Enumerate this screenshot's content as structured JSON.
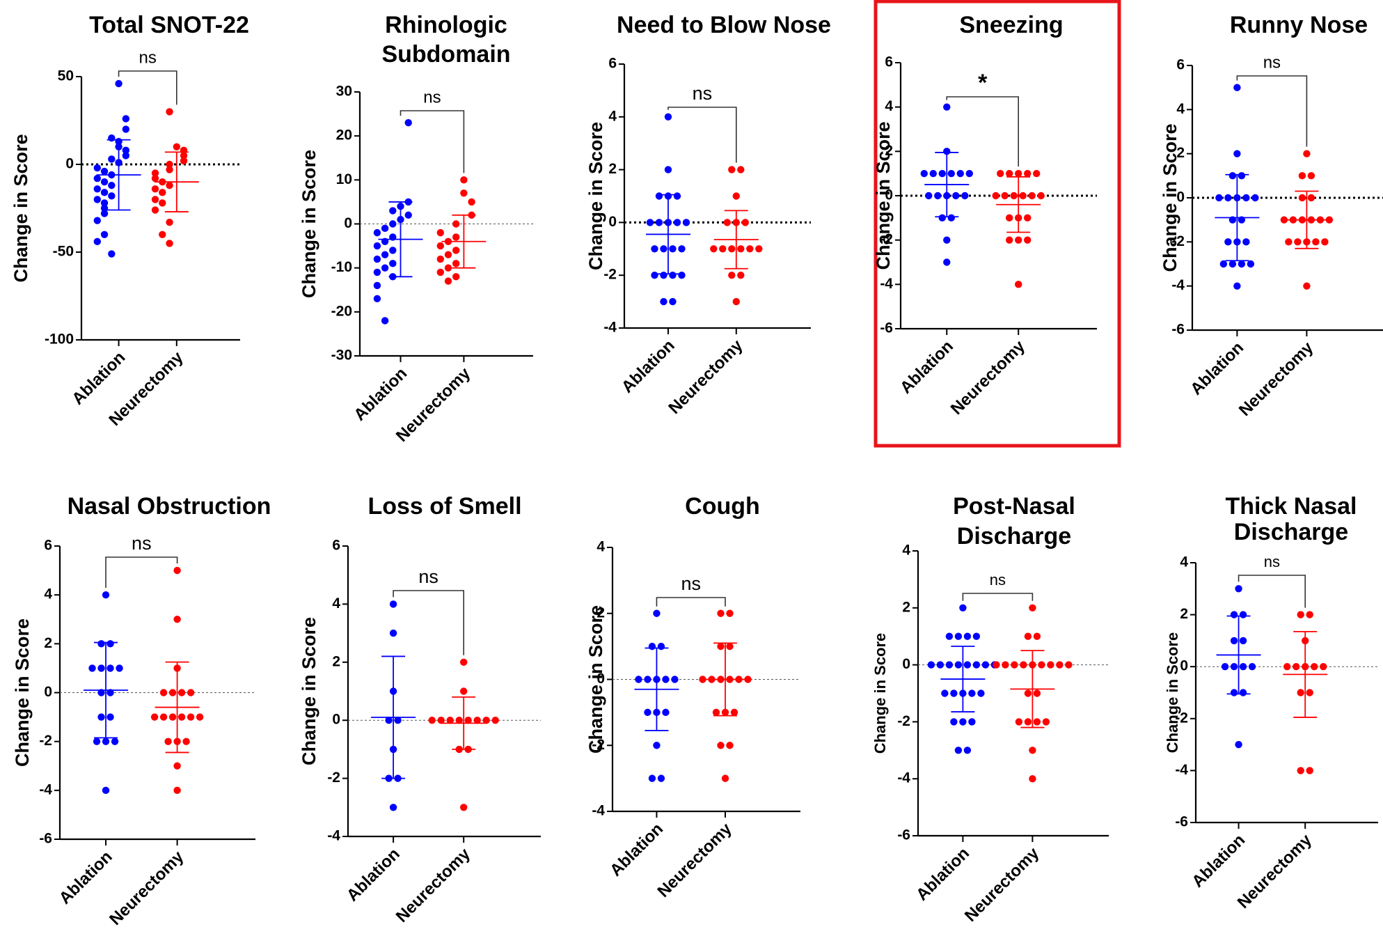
{
  "colors": {
    "ablation": "#0000ff",
    "neurectomy": "#ff0000",
    "highlight": "#e8141b",
    "axis": "#000000"
  },
  "chart_data": [
    {
      "type": "scatter",
      "title": [
        "Total SNOT-22"
      ],
      "ylabel": "Change in Score",
      "ylim": [
        -100,
        50
      ],
      "yticks": [
        50,
        0,
        -50,
        -100
      ],
      "reference_line": "bold-dotted",
      "categories": [
        "Ablation",
        "Neurectomy"
      ],
      "significance": "ns",
      "highlighted": false,
      "series": [
        {
          "name": "Ablation",
          "values": [
            46,
            26,
            20,
            15,
            13,
            10,
            8,
            5,
            3,
            1,
            -2,
            -4,
            -6,
            -8,
            -10,
            -12,
            -14,
            -16,
            -18,
            -20,
            -22,
            -25,
            -28,
            -32,
            -40,
            -44,
            -51
          ],
          "mean": -6,
          "sd": 20
        },
        {
          "name": "Neurectomy",
          "values": [
            30,
            10,
            8,
            5,
            2,
            0,
            -3,
            -5,
            -8,
            -10,
            -12,
            -14,
            -16,
            -20,
            -22,
            -26,
            -33,
            -40,
            -45
          ],
          "mean": -10,
          "sd": 17
        }
      ]
    },
    {
      "type": "scatter",
      "title": [
        "Rhinologic",
        "Subdomain"
      ],
      "ylabel": "Change in Score",
      "ylim": [
        -30,
        30
      ],
      "yticks": [
        30,
        20,
        10,
        0,
        -10,
        -20,
        -30
      ],
      "reference_line": "thin-dotted",
      "categories": [
        "Ablation",
        "Neurectomy"
      ],
      "significance": "ns",
      "highlighted": false,
      "series": [
        {
          "name": "Ablation",
          "values": [
            23,
            5,
            4,
            3,
            2,
            1,
            0,
            -1,
            -2,
            -3,
            -4,
            -5,
            -6,
            -7,
            -8,
            -9,
            -10,
            -11,
            -12,
            -14,
            -17,
            -22
          ],
          "mean": -3.5,
          "sd": 8.5
        },
        {
          "name": "Neurectomy",
          "values": [
            10,
            7,
            5,
            2,
            0,
            -2,
            -3,
            -4,
            -5,
            -6,
            -7,
            -8,
            -9,
            -10,
            -11,
            -12,
            -13
          ],
          "mean": -4,
          "sd": 6
        }
      ]
    },
    {
      "type": "scatter",
      "title": [
        "Need to Blow Nose"
      ],
      "ylabel": "Change in Score",
      "ylim": [
        -4,
        6
      ],
      "yticks": [
        6,
        4,
        2,
        0,
        -2,
        -4
      ],
      "reference_line": "bold-dotted",
      "categories": [
        "Ablation",
        "Neurectomy"
      ],
      "significance": "ns",
      "highlighted": false,
      "series": [
        {
          "name": "Ablation",
          "values": [
            4,
            2,
            1,
            1,
            1,
            0,
            0,
            0,
            0,
            0,
            -1,
            -1,
            -1,
            -1,
            -2,
            -2,
            -2,
            -2,
            -3,
            -3
          ],
          "mean": -0.45,
          "sd": 1.5
        },
        {
          "name": "Neurectomy",
          "values": [
            2,
            2,
            1,
            0,
            0,
            0,
            -1,
            -1,
            -1,
            -1,
            -1,
            -1,
            -2,
            -2,
            -3
          ],
          "mean": -0.65,
          "sd": 1.1
        }
      ]
    },
    {
      "type": "scatter",
      "title": [
        "Sneezing"
      ],
      "ylabel": "Change in Score",
      "ylim": [
        -6,
        6
      ],
      "yticks": [
        6,
        4,
        2,
        0,
        -2,
        -4,
        -6
      ],
      "reference_line": "bold-dotted",
      "categories": [
        "Ablation",
        "Neurectomy"
      ],
      "significance": "*",
      "highlighted": true,
      "series": [
        {
          "name": "Ablation",
          "values": [
            4,
            2,
            1,
            1,
            1,
            1,
            1,
            1,
            0,
            0,
            0,
            0,
            0,
            -1,
            -1,
            -2,
            -3
          ],
          "mean": 0.5,
          "sd": 1.45
        },
        {
          "name": "Neurectomy",
          "values": [
            1,
            1,
            1,
            1,
            1,
            0,
            0,
            0,
            0,
            0,
            0,
            -1,
            -1,
            -1,
            -2,
            -2,
            -2,
            -4
          ],
          "mean": -0.4,
          "sd": 1.25
        }
      ]
    },
    {
      "type": "scatter",
      "title": [
        "Runny Nose"
      ],
      "ylabel": "Change in Score",
      "ylim": [
        -6,
        6
      ],
      "yticks": [
        6,
        4,
        2,
        0,
        -2,
        -4,
        -6
      ],
      "reference_line": "bold-dotted",
      "categories": [
        "Ablation",
        "Neurectomy"
      ],
      "significance": "ns",
      "highlighted": false,
      "series": [
        {
          "name": "Ablation",
          "values": [
            5,
            2,
            1,
            1,
            0,
            0,
            0,
            0,
            0,
            -1,
            -1,
            -2,
            -2,
            -2,
            -3,
            -3,
            -3,
            -3,
            -4
          ],
          "mean": -0.9,
          "sd": 1.95
        },
        {
          "name": "Neurectomy",
          "values": [
            2,
            1,
            1,
            0,
            0,
            -1,
            -1,
            -1,
            -1,
            -1,
            -1,
            -2,
            -2,
            -2,
            -2,
            -2,
            -4
          ],
          "mean": -1,
          "sd": 1.3
        }
      ]
    },
    {
      "type": "scatter",
      "title": [
        "Nasal Obstruction"
      ],
      "ylabel": "Change in Score",
      "ylim": [
        -6,
        6
      ],
      "yticks": [
        6,
        4,
        2,
        0,
        -2,
        -4,
        -6
      ],
      "reference_line": "thin-dotted",
      "categories": [
        "Ablation",
        "Neurectomy"
      ],
      "significance": "ns",
      "highlighted": false,
      "series": [
        {
          "name": "Ablation",
          "values": [
            4,
            2,
            2,
            1,
            1,
            1,
            1,
            0,
            0,
            -1,
            -1,
            -2,
            -2,
            -2,
            -4
          ],
          "mean": 0.1,
          "sd": 1.95
        },
        {
          "name": "Neurectomy",
          "values": [
            5,
            3,
            1,
            0,
            0,
            0,
            0,
            -1,
            -1,
            -1,
            -1,
            -1,
            -1,
            -2,
            -2,
            -2,
            -3,
            -4
          ],
          "mean": -0.6,
          "sd": 1.85
        }
      ]
    },
    {
      "type": "scatter",
      "title": [
        "Loss of Smell"
      ],
      "ylabel": "Change in Score",
      "ylim": [
        -4,
        6
      ],
      "yticks": [
        6,
        4,
        2,
        0,
        -2,
        -4
      ],
      "reference_line": "thin-dotted",
      "categories": [
        "Ablation",
        "Neurectomy"
      ],
      "significance": "ns",
      "highlighted": false,
      "series": [
        {
          "name": "Ablation",
          "values": [
            4,
            3,
            1,
            0,
            0,
            -1,
            -2,
            -2,
            -3
          ],
          "mean": 0.1,
          "sd": 2.1
        },
        {
          "name": "Neurectomy",
          "values": [
            2,
            1,
            0,
            0,
            0,
            0,
            0,
            0,
            0,
            0,
            -1,
            -1,
            -3
          ],
          "mean": -0.1,
          "sd": 0.9
        }
      ]
    },
    {
      "type": "scatter",
      "title": [
        "Cough"
      ],
      "ylabel": "Change in Score",
      "ylim": [
        -4,
        4
      ],
      "yticks": [
        4,
        2,
        0,
        -2,
        -4
      ],
      "reference_line": "thin-dotted",
      "categories": [
        "Ablation",
        "Neurectomy"
      ],
      "significance": "ns",
      "highlighted": false,
      "series": [
        {
          "name": "Ablation",
          "values": [
            2,
            1,
            1,
            0,
            0,
            0,
            0,
            0,
            -1,
            -1,
            -1,
            -2,
            -3,
            -3
          ],
          "mean": -0.3,
          "sd": 1.25
        },
        {
          "name": "Neurectomy",
          "values": [
            2,
            2,
            1,
            1,
            0,
            0,
            0,
            0,
            0,
            0,
            -1,
            -1,
            -1,
            -2,
            -2,
            -3
          ],
          "mean": 0,
          "sd": 1.1
        }
      ]
    },
    {
      "type": "scatter",
      "title": [
        "Post-Nasal",
        "Discharge"
      ],
      "ylabel": "Change in Score",
      "ylim": [
        -6,
        4
      ],
      "yticks": [
        4,
        2,
        0,
        -2,
        -4,
        -6
      ],
      "reference_line": "thin-dotted",
      "categories": [
        "Ablation",
        "Neurectomy"
      ],
      "significance": "ns",
      "highlighted": false,
      "series": [
        {
          "name": "Ablation",
          "values": [
            2,
            1,
            1,
            1,
            1,
            0,
            0,
            0,
            0,
            0,
            0,
            0,
            0,
            -1,
            -1,
            -1,
            -1,
            -1,
            -2,
            -2,
            -2,
            -3,
            -3
          ],
          "mean": -0.5,
          "sd": 1.15
        },
        {
          "name": "Neurectomy",
          "values": [
            2,
            1,
            1,
            0,
            0,
            0,
            0,
            0,
            0,
            0,
            0,
            0,
            -1,
            -1,
            -2,
            -2,
            -2,
            -2,
            -3,
            -4
          ],
          "mean": -0.85,
          "sd": 1.35
        }
      ]
    },
    {
      "type": "scatter",
      "title": [
        "Thick Nasal",
        "Discharge"
      ],
      "ylabel": "Change in Score",
      "ylim": [
        -6,
        4
      ],
      "yticks": [
        4,
        2,
        0,
        -2,
        -4,
        -6
      ],
      "reference_line": "thin-dotted",
      "categories": [
        "Ablation",
        "Neurectomy"
      ],
      "significance": "ns",
      "highlighted": false,
      "series": [
        {
          "name": "Ablation",
          "values": [
            3,
            2,
            2,
            1,
            1,
            0,
            0,
            0,
            0,
            -1,
            -1,
            -3
          ],
          "mean": 0.45,
          "sd": 1.5
        },
        {
          "name": "Neurectomy",
          "values": [
            2,
            2,
            1,
            0,
            0,
            0,
            0,
            0,
            -1,
            -1,
            -4,
            -4
          ],
          "mean": -0.3,
          "sd": 1.65
        }
      ]
    }
  ]
}
